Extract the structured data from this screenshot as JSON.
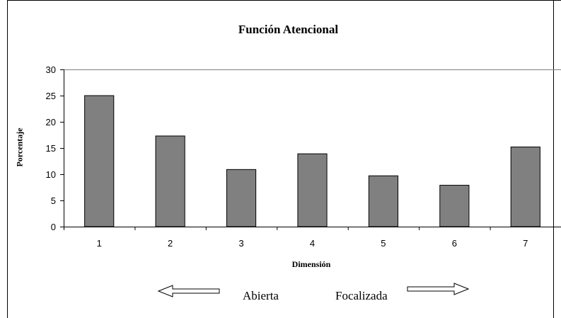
{
  "chart_data": {
    "type": "bar",
    "title": "Función Atencional",
    "xlabel": "Dimensión",
    "ylabel": "Porcentaje",
    "categories": [
      "1",
      "2",
      "3",
      "4",
      "5",
      "6",
      "7"
    ],
    "values": [
      25,
      17.3,
      10.9,
      13.9,
      9.7,
      7.9,
      15.2
    ],
    "ylim": [
      0,
      30
    ],
    "yticks": [
      0,
      5,
      10,
      15,
      20,
      25,
      30
    ],
    "grid": true,
    "legend": "none",
    "colors": {
      "bar": "#808080",
      "bar_stroke": "#000000",
      "grid": "#808080"
    }
  },
  "annotations": {
    "left_label": "Abierta",
    "right_label": "Focalizada"
  }
}
